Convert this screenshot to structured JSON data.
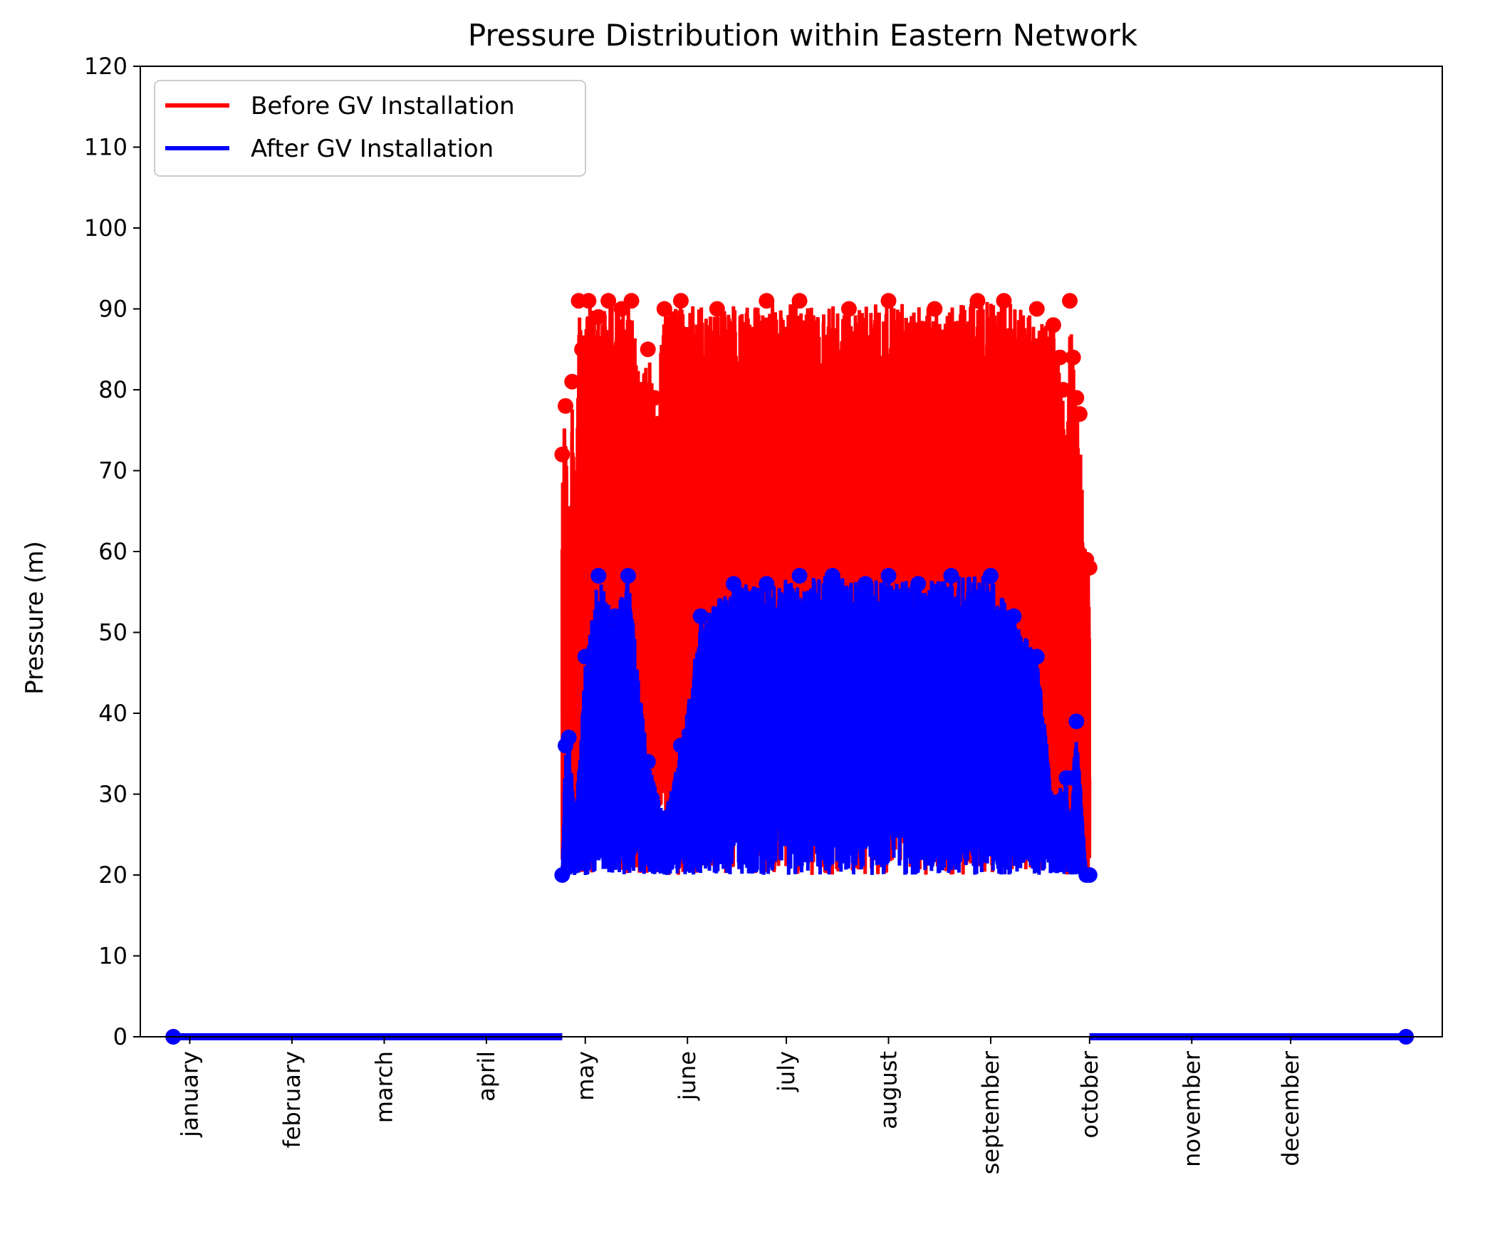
{
  "chart_data": {
    "type": "line",
    "title": "Pressure Distribution within Eastern Network",
    "xlabel": "",
    "ylabel": "Pressure (m)",
    "ylim": [
      0,
      120
    ],
    "yticks": [
      0,
      10,
      20,
      30,
      40,
      50,
      60,
      70,
      80,
      90,
      100,
      110,
      120
    ],
    "x_tick_labels": [
      "january",
      "february",
      "march",
      "april",
      "may",
      "june",
      "july",
      "august",
      "september",
      "october",
      "november",
      "december"
    ],
    "grid": false,
    "legend_position": "top-left",
    "colors": {
      "before": "#ff0000",
      "after": "#0000ff"
    },
    "series": [
      {
        "name": "Before GV Installation",
        "color": "#ff0000",
        "active_window": [
          "april 24",
          "october 3"
        ],
        "typical_range": [
          20,
          90
        ],
        "points": [
          [
            "2023-04-24",
            72
          ],
          [
            "2023-04-25",
            78
          ],
          [
            "2023-04-26",
            54
          ],
          [
            "2023-04-27",
            81
          ],
          [
            "2023-04-28",
            65
          ],
          [
            "2023-04-29",
            91
          ],
          [
            "2023-04-30",
            85
          ],
          [
            "2023-05-02",
            91
          ],
          [
            "2023-05-05",
            89
          ],
          [
            "2023-05-08",
            91
          ],
          [
            "2023-05-12",
            90
          ],
          [
            "2023-05-15",
            91
          ],
          [
            "2023-05-18",
            80
          ],
          [
            "2023-05-20",
            85
          ],
          [
            "2023-05-22",
            79
          ],
          [
            "2023-05-25",
            90
          ],
          [
            "2023-05-30",
            91
          ],
          [
            "2023-06-10",
            90
          ],
          [
            "2023-06-25",
            91
          ],
          [
            "2023-07-05",
            91
          ],
          [
            "2023-07-20",
            90
          ],
          [
            "2023-08-01",
            91
          ],
          [
            "2023-08-15",
            90
          ],
          [
            "2023-08-28",
            91
          ],
          [
            "2023-09-05",
            91
          ],
          [
            "2023-09-15",
            90
          ],
          [
            "2023-09-20",
            88
          ],
          [
            "2023-09-22",
            84
          ],
          [
            "2023-09-23",
            80
          ],
          [
            "2023-09-24",
            69
          ],
          [
            "2023-09-25",
            91
          ],
          [
            "2023-09-26",
            84
          ],
          [
            "2023-09-27",
            79
          ],
          [
            "2023-09-28",
            77
          ],
          [
            "2023-09-30",
            59
          ],
          [
            "2023-10-01",
            58
          ]
        ]
      },
      {
        "name": "After GV Installation",
        "color": "#0000ff",
        "active_window": [
          "april 24",
          "october 3"
        ],
        "typical_range": [
          20,
          57
        ],
        "points": [
          [
            "2023-04-24",
            20
          ],
          [
            "2023-04-25",
            36
          ],
          [
            "2023-04-26",
            37
          ],
          [
            "2023-04-28",
            26
          ],
          [
            "2023-05-01",
            47
          ],
          [
            "2023-05-05",
            57
          ],
          [
            "2023-05-10",
            52
          ],
          [
            "2023-05-14",
            57
          ],
          [
            "2023-05-20",
            34
          ],
          [
            "2023-05-25",
            27
          ],
          [
            "2023-05-30",
            36
          ],
          [
            "2023-06-05",
            52
          ],
          [
            "2023-06-15",
            56
          ],
          [
            "2023-06-25",
            56
          ],
          [
            "2023-07-05",
            57
          ],
          [
            "2023-07-15",
            57
          ],
          [
            "2023-07-25",
            56
          ],
          [
            "2023-08-01",
            57
          ],
          [
            "2023-08-10",
            56
          ],
          [
            "2023-08-20",
            57
          ],
          [
            "2023-09-01",
            57
          ],
          [
            "2023-09-08",
            52
          ],
          [
            "2023-09-15",
            47
          ],
          [
            "2023-09-20",
            29
          ],
          [
            "2023-09-24",
            32
          ],
          [
            "2023-09-25",
            26
          ],
          [
            "2023-09-26",
            32
          ],
          [
            "2023-09-27",
            39
          ],
          [
            "2023-09-30",
            20
          ],
          [
            "2023-10-01",
            20
          ]
        ]
      }
    ]
  }
}
